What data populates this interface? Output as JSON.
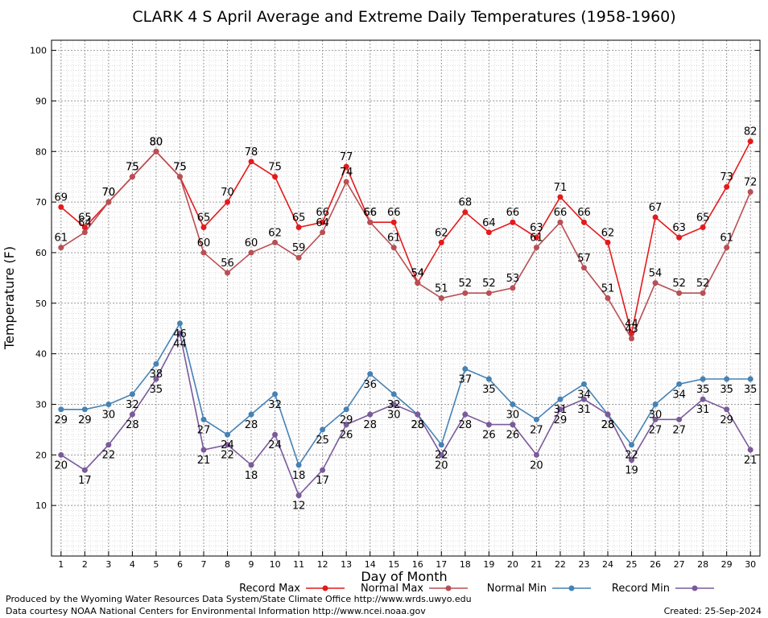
{
  "chart_data": {
    "type": "line",
    "title": "CLARK 4 S April Average and Extreme Daily Temperatures (1958-1960)",
    "xlabel": "Day of Month",
    "ylabel": "Temperature (F)",
    "x": [
      1,
      2,
      3,
      4,
      5,
      6,
      7,
      8,
      9,
      10,
      11,
      12,
      13,
      14,
      15,
      16,
      17,
      18,
      19,
      20,
      21,
      22,
      23,
      24,
      25,
      26,
      27,
      28,
      29,
      30
    ],
    "xlim": [
      0.6,
      30.4
    ],
    "ylim": [
      0,
      102
    ],
    "yticks": [
      10,
      20,
      30,
      40,
      50,
      60,
      70,
      80,
      90,
      100
    ],
    "grid": true,
    "legend_position": "bottom",
    "series": [
      {
        "name": "Record Max",
        "color": "#e41a1c",
        "label_pos": "above",
        "values": [
          69,
          65,
          70,
          75,
          80,
          75,
          65,
          70,
          78,
          75,
          65,
          66,
          77,
          66,
          66,
          54,
          62,
          68,
          64,
          66,
          63,
          71,
          66,
          62,
          44,
          67,
          63,
          65,
          73,
          82
        ]
      },
      {
        "name": "Normal Max",
        "color": "#b84f54",
        "label_pos": "above",
        "values": [
          61,
          64,
          70,
          75,
          80,
          75,
          60,
          56,
          60,
          62,
          59,
          64,
          74,
          66,
          61,
          54,
          51,
          52,
          52,
          53,
          61,
          66,
          57,
          51,
          43,
          54,
          52,
          52,
          61,
          72
        ]
      },
      {
        "name": "Normal Min",
        "color": "#4682b4",
        "label_pos": "below",
        "values": [
          29,
          29,
          30,
          32,
          38,
          46,
          27,
          24,
          28,
          32,
          18,
          25,
          29,
          36,
          32,
          28,
          22,
          37,
          35,
          30,
          27,
          31,
          34,
          28,
          22,
          30,
          34,
          35,
          35,
          35
        ]
      },
      {
        "name": "Record Min",
        "color": "#7a5a9a",
        "label_pos": "below",
        "values": [
          20,
          17,
          22,
          28,
          35,
          44,
          21,
          22,
          18,
          24,
          12,
          17,
          26,
          28,
          30,
          28,
          20,
          28,
          26,
          26,
          20,
          29,
          31,
          28,
          19,
          27,
          27,
          31,
          29,
          21
        ]
      }
    ]
  },
  "footer": {
    "line1": "Produced by the Wyoming Water Resources Data System/State Climate Office http://www.wrds.uwyo.edu",
    "line2": "Data courtesy NOAA National Centers for Environmental Information http://www.ncei.noaa.gov",
    "created": "Created:  25-Sep-2024"
  }
}
